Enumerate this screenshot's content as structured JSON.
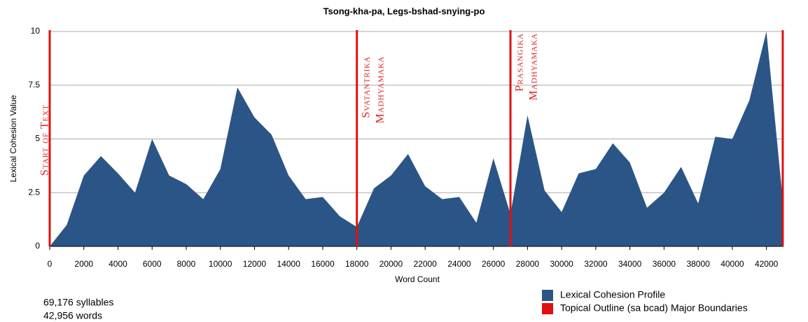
{
  "chart_data": {
    "type": "area",
    "title": "Tsong-kha-pa, Legs-bshad-snying-po",
    "x_label": "Word Count",
    "y_label": "Lexical Cohesion Value",
    "x": [
      0,
      1000,
      2000,
      3000,
      4000,
      5000,
      6000,
      7000,
      8000,
      9000,
      10000,
      11000,
      12000,
      13000,
      14000,
      15000,
      16000,
      17000,
      18000,
      19000,
      20000,
      21000,
      22000,
      23000,
      24000,
      25000,
      26000,
      27000,
      28000,
      29000,
      30000,
      31000,
      32000,
      33000,
      34000,
      35000,
      36000,
      37000,
      38000,
      39000,
      40000,
      41000,
      42000,
      43000
    ],
    "series": [
      {
        "name": "Lexical Cohesion Profile",
        "color": "#2b5586",
        "values": [
          0,
          1.0,
          3.3,
          4.2,
          3.4,
          2.5,
          5.0,
          3.3,
          2.9,
          2.2,
          3.6,
          7.4,
          6.0,
          5.2,
          3.3,
          2.2,
          2.3,
          1.4,
          0.9,
          2.7,
          3.3,
          4.3,
          2.8,
          2.2,
          2.3,
          1.1,
          4.1,
          1.5,
          6.1,
          2.6,
          1.6,
          3.4,
          3.6,
          4.8,
          3.9,
          1.8,
          2.5,
          3.7,
          2.0,
          5.1,
          5.0,
          6.8,
          10,
          1.8
        ]
      }
    ],
    "boundaries": {
      "name": "Topical Outline (sa bcad) Major Boundaries",
      "color": "#e01010",
      "items": [
        {
          "x": 0,
          "label": [
            "Start of Text"
          ]
        },
        {
          "x": 18000,
          "label": [
            "Svatantrika",
            "Madhyamaka"
          ]
        },
        {
          "x": 27000,
          "label": [
            "Prasangika",
            "Madhyamaka"
          ]
        },
        {
          "x": 42956,
          "label": []
        }
      ]
    },
    "xlim": [
      0,
      43000
    ],
    "xticks": [
      0,
      2000,
      4000,
      6000,
      8000,
      10000,
      12000,
      14000,
      16000,
      18000,
      20000,
      22000,
      24000,
      26000,
      28000,
      30000,
      32000,
      34000,
      36000,
      38000,
      40000,
      42000
    ],
    "ylim": [
      0,
      10
    ],
    "yticks": [
      0,
      2.5,
      5,
      7.5,
      10
    ],
    "grid": true,
    "legend": "bottom-right",
    "annotations": [
      "69,176 syllables",
      "42,956 words"
    ]
  }
}
